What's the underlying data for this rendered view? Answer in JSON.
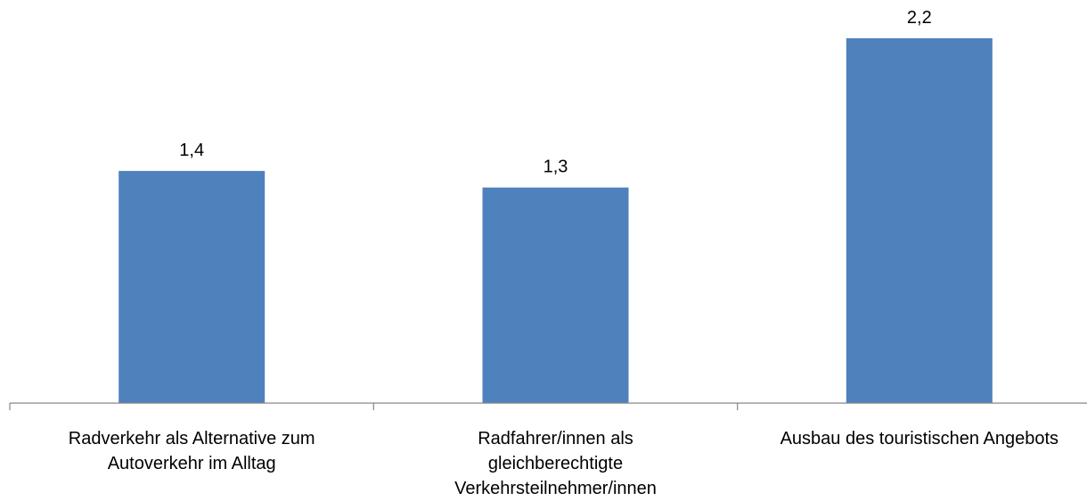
{
  "chart_data": {
    "type": "bar",
    "categories": [
      [
        "Radverkehr als Alternative zum",
        "Autoverkehr im Alltag"
      ],
      [
        "Radfahrer/innen als",
        "gleichberechtigte",
        "Verkehrsteilnehmer/innen"
      ],
      [
        "Ausbau des touristischen Angebots"
      ]
    ],
    "values": [
      1.4,
      1.3,
      2.2
    ],
    "data_labels": [
      "1,4",
      "1,3",
      "2,2"
    ],
    "ylim": [
      0,
      2.2
    ],
    "grid": false,
    "legend": "none",
    "title": "",
    "xlabel": "",
    "ylabel": ""
  },
  "colors": {
    "bar": "#4F81BD",
    "axis": "#868686",
    "text": "#000000"
  }
}
